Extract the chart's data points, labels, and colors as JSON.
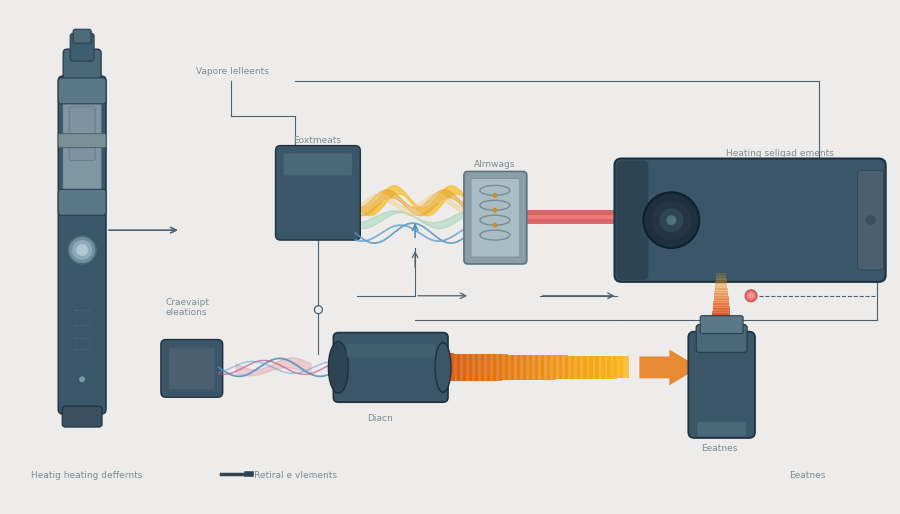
{
  "bg_color": "#eeecea",
  "device_color": "#3a5668",
  "device_color2": "#2d4455",
  "text_color": "#7a8a92",
  "line_color": "#4a6070",
  "figsize": [
    9.0,
    5.14
  ],
  "dpi": 100,
  "labels": {
    "vapore": "Vapore lelleents",
    "eoxtmeats": "Eoxtmeats",
    "alrnwags": "Alrnwags",
    "heating_right": "Heating seligad ements",
    "craevaipt": "Craevaipt\neleations",
    "diacn": "Diacn",
    "heatig": "Heatig heating deffernts",
    "retiral": "Retiral e vlements",
    "eeatnes": "Eeatnes"
  }
}
